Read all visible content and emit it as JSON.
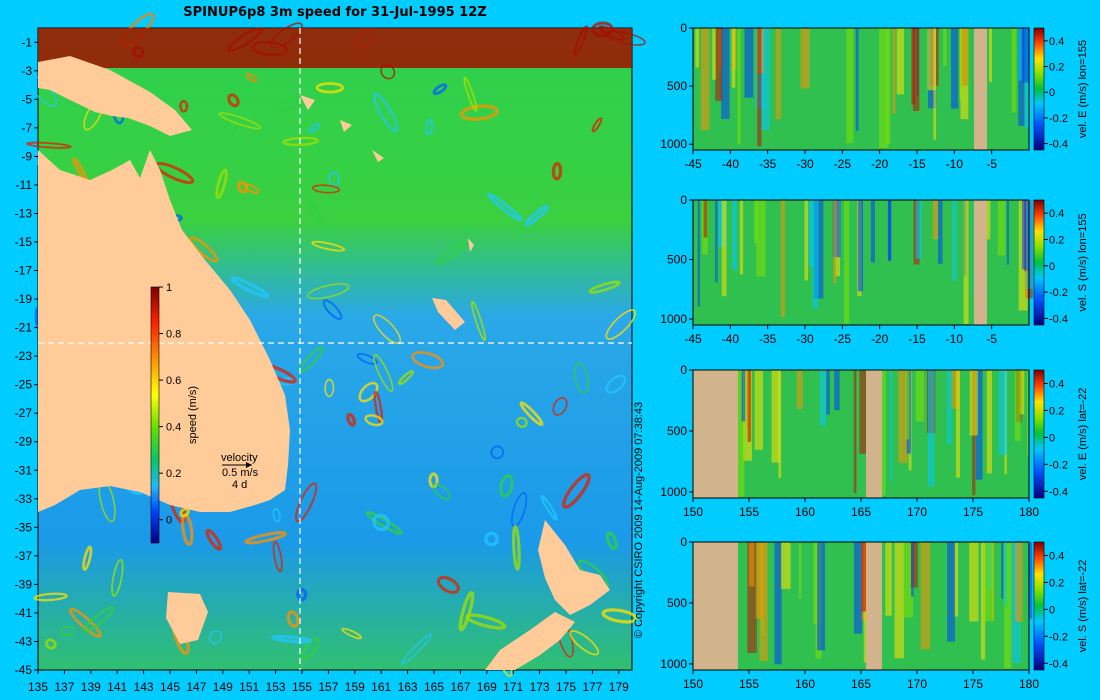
{
  "chart_data": [
    {
      "type": "heatmap",
      "title": "SPINUP6p8 3m speed for 31-Jul-1995 12Z",
      "x_ticks": [
        "135",
        "137",
        "139",
        "141",
        "143",
        "145",
        "147",
        "149",
        "151",
        "153",
        "155",
        "157",
        "159",
        "161",
        "163",
        "165",
        "167",
        "169",
        "171",
        "173",
        "175",
        "177",
        "179"
      ],
      "y_ticks": [
        "-1",
        "-3",
        "-5",
        "-7",
        "-9",
        "-11",
        "-13",
        "-15",
        "-17",
        "-19",
        "-21",
        "-23",
        "-25",
        "-27",
        "-29",
        "-31",
        "-33",
        "-35",
        "-37",
        "-39",
        "-41",
        "-43",
        "-45"
      ],
      "xlim": [
        135,
        180
      ],
      "ylim": [
        -45,
        0
      ],
      "colorbar": {
        "label": "speed (m/s)",
        "ticks": [
          "1",
          "0.8",
          "0.6",
          "0.4",
          "0.2",
          "0"
        ],
        "range": [
          -0.1,
          1
        ]
      },
      "legend": {
        "title": "velocity",
        "speed": "0.5 m/s",
        "duration": "4 d"
      },
      "section_lines": {
        "lon": 155,
        "lat": -22
      }
    },
    {
      "type": "heatmap",
      "x_ticks": [
        "-45",
        "-40",
        "-35",
        "-30",
        "-25",
        "-20",
        "-15",
        "-10",
        "-5"
      ],
      "y_ticks": [
        "0",
        "500",
        "1000"
      ],
      "xlim": [
        -45,
        0
      ],
      "ylim": [
        1050,
        0
      ],
      "colorbar": {
        "label": "vel. E (m/s) lon=155",
        "ticks": [
          "0.4",
          "0.2",
          "0",
          "-0.2",
          "-0.4"
        ]
      }
    },
    {
      "type": "heatmap",
      "x_ticks": [
        "-45",
        "-40",
        "-35",
        "-30",
        "-25",
        "-20",
        "-15",
        "-10",
        "-5"
      ],
      "y_ticks": [
        "0",
        "500",
        "1000"
      ],
      "xlim": [
        -45,
        0
      ],
      "ylim": [
        1050,
        0
      ],
      "colorbar": {
        "label": "vel. S (m/s) lon=155",
        "ticks": [
          "0.4",
          "0.2",
          "0",
          "-0.2",
          "-0.4"
        ]
      }
    },
    {
      "type": "heatmap",
      "x_ticks": [
        "150",
        "155",
        "160",
        "165",
        "170",
        "175",
        "180"
      ],
      "y_ticks": [
        "0",
        "500",
        "1000"
      ],
      "xlim": [
        150,
        180
      ],
      "ylim": [
        1050,
        0
      ],
      "colorbar": {
        "label": "vel. E (m/s) lat=-22",
        "ticks": [
          "0.4",
          "0.2",
          "0",
          "-0.2",
          "-0.4"
        ]
      }
    },
    {
      "type": "heatmap",
      "x_ticks": [
        "150",
        "155",
        "160",
        "165",
        "170",
        "175",
        "180"
      ],
      "y_ticks": [
        "0",
        "500",
        "1000"
      ],
      "xlim": [
        150,
        180
      ],
      "ylim": [
        1050,
        0
      ],
      "colorbar": {
        "label": "vel. S (m/s) lat=-22",
        "ticks": [
          "0.4",
          "0.2",
          "0",
          "-0.2",
          "-0.4"
        ]
      }
    }
  ],
  "copyright": "© Copyright CSIRO 2009   14-Aug-2009 07:38:43"
}
